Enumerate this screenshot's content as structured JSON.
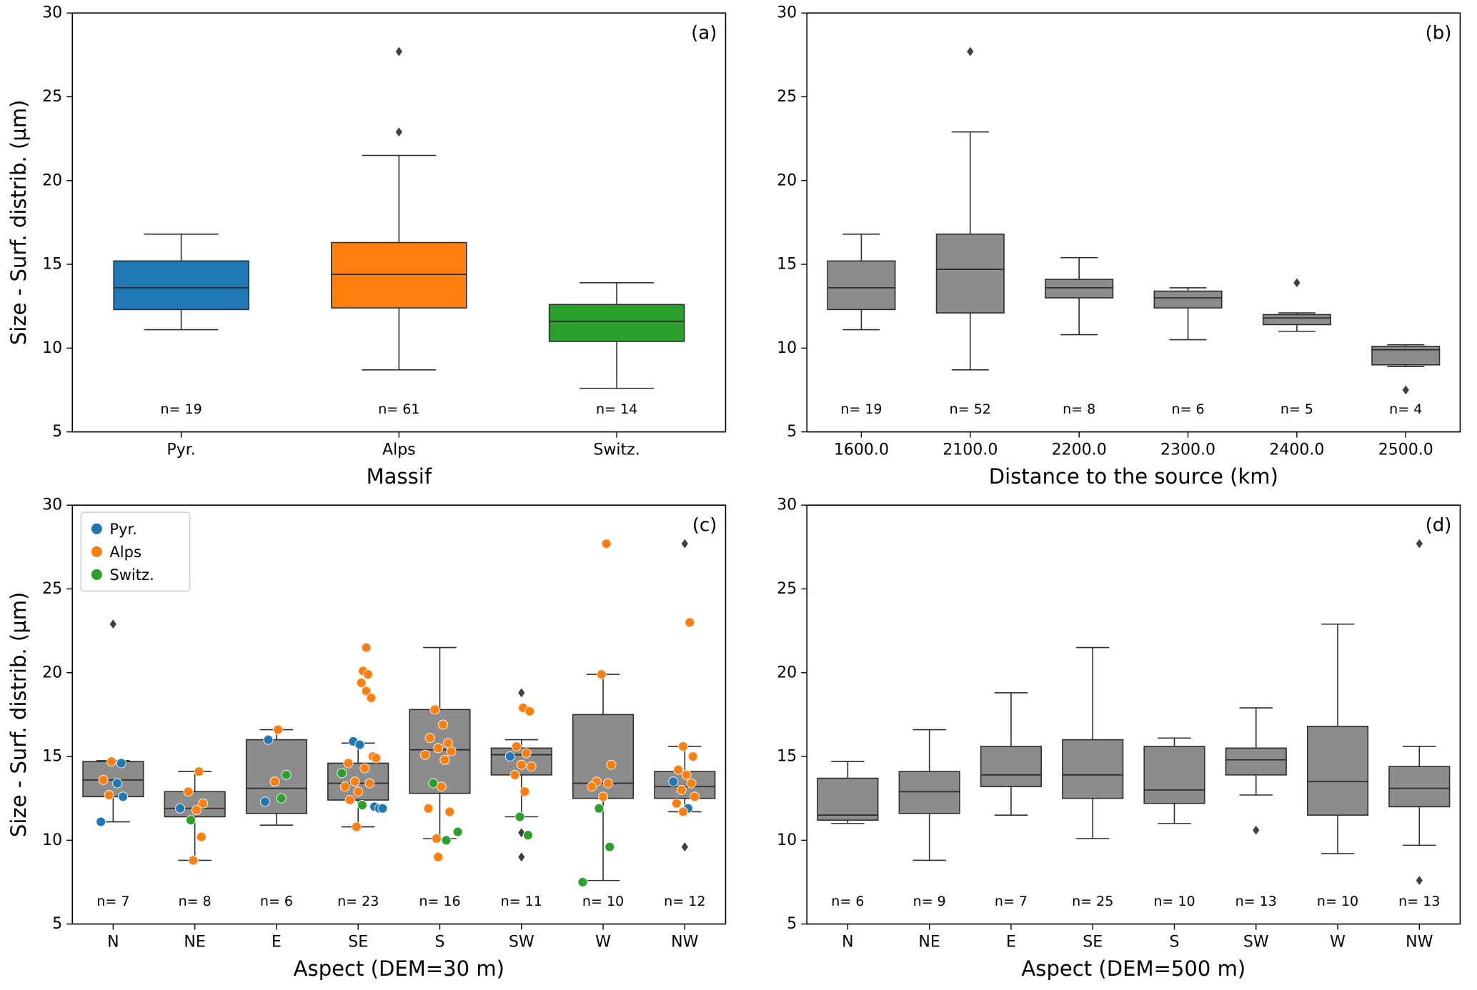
{
  "figure": {
    "background": "#ffffff"
  },
  "colors": {
    "pyr": "#1f77b4",
    "alps": "#ff7f0e",
    "switz": "#2ca02c",
    "box_gray": "#8c8c8c",
    "box_edge": "#2e2e2e",
    "flier": "#3f3f46"
  },
  "points_format": [
    "category_index",
    "x_jitter_fraction_of_slot",
    "y_value_um",
    "massif_group"
  ],
  "chart_data": [
    {
      "id": "a",
      "type": "box",
      "panel_label": "(a)",
      "xlabel": "Massif",
      "ylabel": "Size - Surf. distrib. (µm)",
      "ylim": [
        5,
        30
      ],
      "yticks": [
        5,
        10,
        15,
        20,
        25,
        30
      ],
      "categories": [
        "Pyr.",
        "Alps",
        "Switz."
      ],
      "n_labels": [
        "n= 19",
        "n= 61",
        "n= 14"
      ],
      "box_fill": [
        "#1f77b4",
        "#ff7f0e",
        "#2ca02c"
      ],
      "box_width_frac": 0.62,
      "boxes": [
        {
          "whislo": 11.1,
          "q1": 12.3,
          "med": 13.6,
          "q3": 15.2,
          "whishi": 16.8,
          "outliers": []
        },
        {
          "whislo": 8.7,
          "q1": 12.4,
          "med": 14.4,
          "q3": 16.3,
          "whishi": 21.5,
          "outliers": [
            22.9,
            27.7
          ]
        },
        {
          "whislo": 7.6,
          "q1": 10.4,
          "med": 11.6,
          "q3": 12.6,
          "whishi": 13.9,
          "outliers": []
        }
      ]
    },
    {
      "id": "b",
      "type": "box",
      "panel_label": "(b)",
      "xlabel": "Distance to the source (km)",
      "ylabel": "",
      "ylim": [
        5,
        30
      ],
      "yticks": [
        5,
        10,
        15,
        20,
        25,
        30
      ],
      "categories": [
        "1600.0",
        "2100.0",
        "2200.0",
        "2300.0",
        "2400.0",
        "2500.0"
      ],
      "n_labels": [
        "n= 19",
        "n= 52",
        "n= 8",
        "n= 6",
        "n= 5",
        "n= 4"
      ],
      "box_fill": "gray",
      "box_width_frac": 0.62,
      "boxes": [
        {
          "whislo": 11.1,
          "q1": 12.3,
          "med": 13.6,
          "q3": 15.2,
          "whishi": 16.8,
          "outliers": []
        },
        {
          "whislo": 8.7,
          "q1": 12.1,
          "med": 14.7,
          "q3": 16.8,
          "whishi": 22.9,
          "outliers": [
            27.7
          ]
        },
        {
          "whislo": 10.8,
          "q1": 13.0,
          "med": 13.6,
          "q3": 14.1,
          "whishi": 15.4,
          "outliers": []
        },
        {
          "whislo": 10.5,
          "q1": 12.4,
          "med": 13.0,
          "q3": 13.4,
          "whishi": 13.6,
          "outliers": []
        },
        {
          "whislo": 11.0,
          "q1": 11.4,
          "med": 11.8,
          "q3": 12.0,
          "whishi": 12.1,
          "outliers": [
            13.9
          ]
        },
        {
          "whislo": 8.9,
          "q1": 9.0,
          "med": 9.9,
          "q3": 10.1,
          "whishi": 10.2,
          "outliers": [
            7.5
          ]
        }
      ]
    },
    {
      "id": "c",
      "type": "box",
      "panel_label": "(c)",
      "xlabel": "Aspect (DEM=30 m)",
      "ylabel": "Size - Surf. distrib. (µm)",
      "ylim": [
        5,
        30
      ],
      "yticks": [
        5,
        10,
        15,
        20,
        25,
        30
      ],
      "categories": [
        "N",
        "NE",
        "E",
        "SE",
        "S",
        "SW",
        "W",
        "NW"
      ],
      "n_labels": [
        "n= 7",
        "n= 8",
        "n= 6",
        "n= 23",
        "n= 16",
        "n= 11",
        "n= 10",
        "n= 12"
      ],
      "box_fill": "gray",
      "box_width_frac": 0.74,
      "legend": {
        "entries": [
          {
            "label": "Pyr.",
            "group": "pyr"
          },
          {
            "label": "Alps",
            "group": "alps"
          },
          {
            "label": "Switz.",
            "group": "switz"
          }
        ]
      },
      "boxes": [
        {
          "whislo": 11.1,
          "q1": 12.6,
          "med": 13.6,
          "q3": 14.7,
          "whishi": 14.75,
          "outliers": [
            22.9
          ]
        },
        {
          "whislo": 8.8,
          "q1": 11.4,
          "med": 11.9,
          "q3": 12.9,
          "whishi": 14.1,
          "outliers": []
        },
        {
          "whislo": 10.9,
          "q1": 11.6,
          "med": 13.1,
          "q3": 16.0,
          "whishi": 16.6,
          "outliers": []
        },
        {
          "whislo": 10.8,
          "q1": 12.4,
          "med": 13.4,
          "q3": 14.6,
          "whishi": 15.8,
          "outliers": []
        },
        {
          "whislo": 10.1,
          "q1": 12.8,
          "med": 15.4,
          "q3": 17.8,
          "whishi": 21.5,
          "outliers": []
        },
        {
          "whislo": 11.4,
          "q1": 13.9,
          "med": 15.1,
          "q3": 15.5,
          "whishi": 16.0,
          "outliers": [
            18.8,
            10.45,
            9.0
          ]
        },
        {
          "whislo": 7.6,
          "q1": 12.5,
          "med": 13.4,
          "q3": 17.5,
          "whishi": 19.9,
          "outliers": []
        },
        {
          "whislo": 11.7,
          "q1": 12.5,
          "med": 13.2,
          "q3": 14.1,
          "whishi": 15.6,
          "outliers": [
            27.7,
            9.6
          ]
        }
      ],
      "points": [
        [
          0,
          -0.02,
          14.7,
          "alps"
        ],
        [
          0,
          0.1,
          14.6,
          "pyr"
        ],
        [
          0,
          -0.12,
          13.6,
          "alps"
        ],
        [
          0,
          0.05,
          13.4,
          "pyr"
        ],
        [
          0,
          -0.05,
          12.7,
          "alps"
        ],
        [
          0,
          0.12,
          12.6,
          "pyr"
        ],
        [
          0,
          -0.15,
          11.1,
          "pyr"
        ],
        [
          1,
          0.05,
          14.1,
          "alps"
        ],
        [
          1,
          -0.08,
          12.9,
          "alps"
        ],
        [
          1,
          0.1,
          12.2,
          "alps"
        ],
        [
          1,
          -0.18,
          11.9,
          "pyr"
        ],
        [
          1,
          0.02,
          11.8,
          "alps"
        ],
        [
          1,
          -0.05,
          11.2,
          "switz"
        ],
        [
          1,
          0.08,
          10.2,
          "alps"
        ],
        [
          1,
          -0.02,
          8.8,
          "alps"
        ],
        [
          2,
          0.02,
          16.6,
          "alps"
        ],
        [
          2,
          -0.1,
          16.0,
          "pyr"
        ],
        [
          2,
          0.12,
          13.9,
          "switz"
        ],
        [
          2,
          -0.02,
          13.5,
          "alps"
        ],
        [
          2,
          0.06,
          12.5,
          "switz"
        ],
        [
          2,
          -0.14,
          12.3,
          "pyr"
        ],
        [
          3,
          0.1,
          21.5,
          "alps"
        ],
        [
          3,
          0.06,
          20.1,
          "alps"
        ],
        [
          3,
          0.12,
          19.9,
          "alps"
        ],
        [
          3,
          0.04,
          19.4,
          "alps"
        ],
        [
          3,
          0.1,
          18.9,
          "alps"
        ],
        [
          3,
          0.16,
          18.5,
          "alps"
        ],
        [
          3,
          -0.06,
          15.9,
          "pyr"
        ],
        [
          3,
          0.02,
          15.7,
          "pyr"
        ],
        [
          3,
          0.18,
          15.0,
          "alps"
        ],
        [
          3,
          0.22,
          14.9,
          "alps"
        ],
        [
          3,
          -0.12,
          14.6,
          "alps"
        ],
        [
          3,
          0.08,
          14.3,
          "alps"
        ],
        [
          3,
          -0.2,
          14.0,
          "switz"
        ],
        [
          3,
          -0.04,
          13.5,
          "alps"
        ],
        [
          3,
          0.14,
          13.4,
          "alps"
        ],
        [
          3,
          -0.16,
          13.2,
          "alps"
        ],
        [
          3,
          0.0,
          12.9,
          "alps"
        ],
        [
          3,
          -0.1,
          12.4,
          "alps"
        ],
        [
          3,
          0.05,
          12.1,
          "switz"
        ],
        [
          3,
          0.2,
          12.0,
          "pyr"
        ],
        [
          3,
          0.26,
          11.9,
          "pyr"
        ],
        [
          3,
          0.3,
          11.9,
          "pyr"
        ],
        [
          3,
          -0.02,
          10.8,
          "alps"
        ],
        [
          4,
          -0.06,
          17.8,
          "alps"
        ],
        [
          4,
          0.04,
          16.9,
          "alps"
        ],
        [
          4,
          -0.12,
          16.1,
          "alps"
        ],
        [
          4,
          0.1,
          15.8,
          "alps"
        ],
        [
          4,
          -0.02,
          15.5,
          "alps"
        ],
        [
          4,
          0.14,
          15.3,
          "alps"
        ],
        [
          4,
          -0.18,
          15.1,
          "alps"
        ],
        [
          4,
          0.06,
          14.8,
          "alps"
        ],
        [
          4,
          -0.08,
          13.4,
          "switz"
        ],
        [
          4,
          0.02,
          13.2,
          "alps"
        ],
        [
          4,
          -0.14,
          11.9,
          "alps"
        ],
        [
          4,
          0.12,
          11.7,
          "alps"
        ],
        [
          4,
          0.22,
          10.5,
          "switz"
        ],
        [
          4,
          -0.04,
          10.1,
          "alps"
        ],
        [
          4,
          0.08,
          10.0,
          "switz"
        ],
        [
          4,
          -0.02,
          9.0,
          "alps"
        ],
        [
          5,
          0.02,
          17.9,
          "alps"
        ],
        [
          5,
          0.1,
          17.7,
          "alps"
        ],
        [
          5,
          -0.06,
          15.6,
          "alps"
        ],
        [
          5,
          0.06,
          15.2,
          "alps"
        ],
        [
          5,
          -0.14,
          15.0,
          "pyr"
        ],
        [
          5,
          0.0,
          14.5,
          "alps"
        ],
        [
          5,
          0.12,
          14.4,
          "alps"
        ],
        [
          5,
          -0.08,
          13.9,
          "alps"
        ],
        [
          5,
          0.04,
          12.9,
          "alps"
        ],
        [
          5,
          -0.02,
          11.4,
          "switz"
        ],
        [
          5,
          0.08,
          10.3,
          "switz"
        ],
        [
          6,
          0.04,
          27.7,
          "alps"
        ],
        [
          6,
          -0.02,
          19.9,
          "alps"
        ],
        [
          6,
          0.1,
          14.5,
          "alps"
        ],
        [
          6,
          -0.08,
          13.5,
          "alps"
        ],
        [
          6,
          0.06,
          13.4,
          "alps"
        ],
        [
          6,
          -0.14,
          13.2,
          "alps"
        ],
        [
          6,
          0.0,
          12.6,
          "alps"
        ],
        [
          6,
          -0.05,
          11.9,
          "switz"
        ],
        [
          6,
          0.08,
          9.6,
          "switz"
        ],
        [
          6,
          -0.25,
          7.5,
          "switz"
        ],
        [
          7,
          0.06,
          23.0,
          "alps"
        ],
        [
          7,
          -0.02,
          15.6,
          "alps"
        ],
        [
          7,
          0.1,
          15.0,
          "alps"
        ],
        [
          7,
          -0.08,
          14.2,
          "alps"
        ],
        [
          7,
          0.02,
          13.9,
          "alps"
        ],
        [
          7,
          -0.14,
          13.5,
          "pyr"
        ],
        [
          7,
          0.08,
          13.4,
          "alps"
        ],
        [
          7,
          -0.04,
          13.0,
          "alps"
        ],
        [
          7,
          0.12,
          12.6,
          "alps"
        ],
        [
          7,
          -0.1,
          12.2,
          "alps"
        ],
        [
          7,
          0.04,
          11.9,
          "pyr"
        ],
        [
          7,
          -0.02,
          11.7,
          "alps"
        ]
      ]
    },
    {
      "id": "d",
      "type": "box",
      "panel_label": "(d)",
      "xlabel": "Aspect (DEM=500 m)",
      "ylabel": "",
      "ylim": [
        5,
        30
      ],
      "yticks": [
        5,
        10,
        15,
        20,
        25,
        30
      ],
      "categories": [
        "N",
        "NE",
        "E",
        "SE",
        "S",
        "SW",
        "W",
        "NW"
      ],
      "n_labels": [
        "n= 6",
        "n= 9",
        "n= 7",
        "n= 25",
        "n= 10",
        "n= 13",
        "n= 10",
        "n= 13"
      ],
      "box_fill": "gray",
      "box_width_frac": 0.74,
      "boxes": [
        {
          "whislo": 11.0,
          "q1": 11.2,
          "med": 11.5,
          "q3": 13.7,
          "whishi": 14.7,
          "outliers": []
        },
        {
          "whislo": 8.8,
          "q1": 11.6,
          "med": 12.9,
          "q3": 14.1,
          "whishi": 16.6,
          "outliers": []
        },
        {
          "whislo": 11.5,
          "q1": 13.2,
          "med": 13.9,
          "q3": 15.6,
          "whishi": 18.8,
          "outliers": []
        },
        {
          "whislo": 10.1,
          "q1": 12.5,
          "med": 13.9,
          "q3": 16.0,
          "whishi": 21.5,
          "outliers": []
        },
        {
          "whislo": 11.0,
          "q1": 12.2,
          "med": 13.0,
          "q3": 15.6,
          "whishi": 16.1,
          "outliers": []
        },
        {
          "whislo": 12.7,
          "q1": 13.9,
          "med": 14.8,
          "q3": 15.5,
          "whishi": 17.9,
          "outliers": [
            10.6
          ]
        },
        {
          "whislo": 9.2,
          "q1": 11.5,
          "med": 13.5,
          "q3": 16.8,
          "whishi": 22.9,
          "outliers": []
        },
        {
          "whislo": 9.7,
          "q1": 12.0,
          "med": 13.1,
          "q3": 14.4,
          "whishi": 15.6,
          "outliers": [
            27.7,
            7.6
          ]
        }
      ]
    }
  ]
}
